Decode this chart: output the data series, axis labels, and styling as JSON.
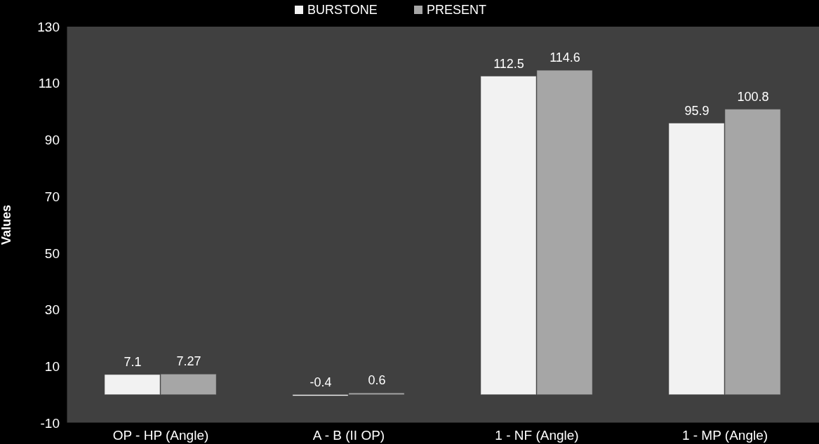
{
  "chart_data": {
    "type": "bar",
    "ylabel": "Values",
    "categories": [
      "OP - HP (Angle)",
      "A - B (II OP)",
      "1 - NF (Angle)",
      "1 - MP (Angle)"
    ],
    "series": [
      {
        "name": "BURSTONE",
        "color": "#f2f2f2",
        "values": [
          7.1,
          -0.4,
          112.5,
          95.9
        ]
      },
      {
        "name": "PRESENT",
        "color": "#a6a6a6",
        "values": [
          7.27,
          0.6,
          114.6,
          100.8
        ]
      }
    ],
    "ylim": [
      -10,
      130
    ],
    "yticks": [
      -10,
      10,
      30,
      50,
      70,
      90,
      110,
      130
    ],
    "data_labels": true,
    "legend": "top",
    "grid": false
  }
}
